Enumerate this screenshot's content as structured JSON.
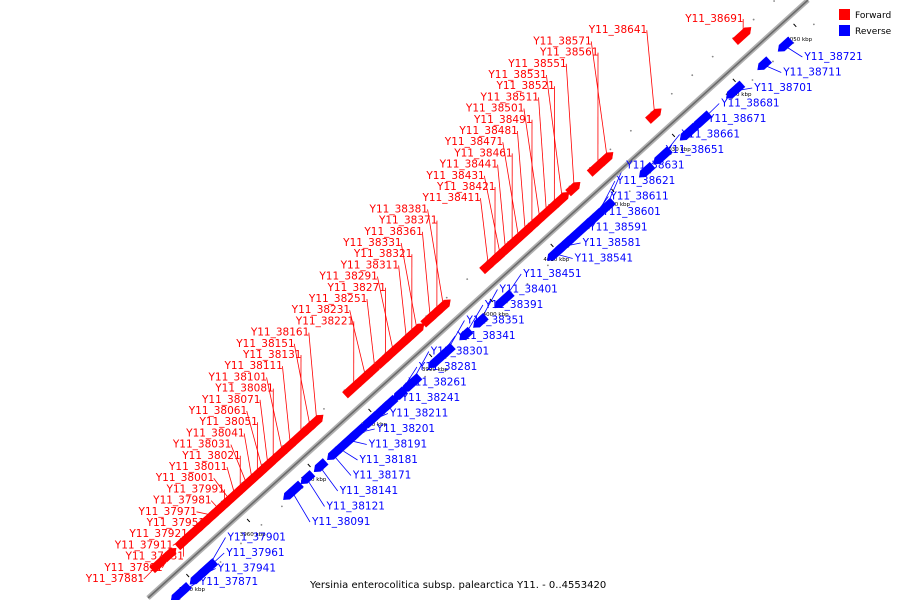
{
  "caption": "Yersinia enterocolitica subsp. palearctica Y11. - 0..4553420",
  "legend": [
    {
      "label": "Forward",
      "color": "#ff0000"
    },
    {
      "label": "Reverse",
      "color": "#0000ff"
    }
  ],
  "colors": {
    "forward": "#ff0000",
    "reverse": "#0000ff",
    "backbone": "#9a9a9a"
  },
  "ticks": [
    "3950 kbp",
    "3960 kbp",
    "3970 kbp",
    "3980 kbp",
    "3990 kbp",
    "4000 kbp",
    "4010 kbp",
    "4020 kbp",
    "4030 kbp",
    "4040 kbp",
    "4050 kbp"
  ],
  "genes": [
    {
      "id": "Y11_37871",
      "strand": "reverse",
      "pos": 0.03
    },
    {
      "id": "Y11_37881",
      "strand": "forward",
      "pos": 0.036
    },
    {
      "id": "Y11_37891",
      "strand": "forward",
      "pos": 0.052
    },
    {
      "id": "Y11_37901",
      "strand": "reverse",
      "pos": 0.072
    },
    {
      "id": "Y11_37911",
      "strand": "forward",
      "pos": 0.08
    },
    {
      "id": "Y11_37921",
      "strand": "forward",
      "pos": 0.09
    },
    {
      "id": "Y11_37931",
      "strand": "forward",
      "pos": 0.072
    },
    {
      "id": "Y11_37941",
      "strand": "reverse",
      "pos": 0.057
    },
    {
      "id": "Y11_37951",
      "strand": "forward",
      "pos": 0.104
    },
    {
      "id": "Y11_37961",
      "strand": "reverse",
      "pos": 0.07
    },
    {
      "id": "Y11_37971",
      "strand": "forward",
      "pos": 0.116
    },
    {
      "id": "Y11_37981",
      "strand": "forward",
      "pos": 0.126
    },
    {
      "id": "Y11_37991",
      "strand": "forward",
      "pos": 0.134
    },
    {
      "id": "Y11_38001",
      "strand": "forward",
      "pos": 0.142
    },
    {
      "id": "Y11_38011",
      "strand": "forward",
      "pos": 0.15
    },
    {
      "id": "Y11_38021",
      "strand": "forward",
      "pos": 0.158
    },
    {
      "id": "Y11_38031",
      "strand": "forward",
      "pos": 0.168
    },
    {
      "id": "Y11_38041",
      "strand": "forward",
      "pos": 0.176
    },
    {
      "id": "Y11_38051",
      "strand": "forward",
      "pos": 0.184
    },
    {
      "id": "Y11_38061",
      "strand": "forward",
      "pos": 0.192
    },
    {
      "id": "Y11_38071",
      "strand": "forward",
      "pos": 0.2
    },
    {
      "id": "Y11_38081",
      "strand": "forward",
      "pos": 0.208
    },
    {
      "id": "Y11_38091",
      "strand": "reverse",
      "pos": 0.2
    },
    {
      "id": "Y11_38101",
      "strand": "forward",
      "pos": 0.222
    },
    {
      "id": "Y11_38111",
      "strand": "forward",
      "pos": 0.234
    },
    {
      "id": "Y11_38121",
      "strand": "reverse",
      "pos": 0.222
    },
    {
      "id": "Y11_38131",
      "strand": "forward",
      "pos": 0.25
    },
    {
      "id": "Y11_38141",
      "strand": "reverse",
      "pos": 0.242
    },
    {
      "id": "Y11_38151",
      "strand": "forward",
      "pos": 0.264
    },
    {
      "id": "Y11_38161",
      "strand": "forward",
      "pos": 0.274
    },
    {
      "id": "Y11_38171",
      "strand": "reverse",
      "pos": 0.262
    },
    {
      "id": "Y11_38181",
      "strand": "reverse",
      "pos": 0.272
    },
    {
      "id": "Y11_38191",
      "strand": "reverse",
      "pos": 0.286
    },
    {
      "id": "Y11_38201",
      "strand": "reverse",
      "pos": 0.298
    },
    {
      "id": "Y11_38211",
      "strand": "reverse",
      "pos": 0.318
    },
    {
      "id": "Y11_38221",
      "strand": "forward",
      "pos": 0.33
    },
    {
      "id": "Y11_38231",
      "strand": "forward",
      "pos": 0.348
    },
    {
      "id": "Y11_38241",
      "strand": "reverse",
      "pos": 0.336
    },
    {
      "id": "Y11_38251",
      "strand": "forward",
      "pos": 0.362
    },
    {
      "id": "Y11_38261",
      "strand": "reverse",
      "pos": 0.346
    },
    {
      "id": "Y11_38271",
      "strand": "forward",
      "pos": 0.378
    },
    {
      "id": "Y11_38281",
      "strand": "reverse",
      "pos": 0.362
    },
    {
      "id": "Y11_38291",
      "strand": "forward",
      "pos": 0.39
    },
    {
      "id": "Y11_38301",
      "strand": "reverse",
      "pos": 0.38
    },
    {
      "id": "Y11_38311",
      "strand": "forward",
      "pos": 0.41
    },
    {
      "id": "Y11_38321",
      "strand": "forward",
      "pos": 0.418
    },
    {
      "id": "Y11_38331",
      "strand": "forward",
      "pos": 0.426
    },
    {
      "id": "Y11_38341",
      "strand": "reverse",
      "pos": 0.42
    },
    {
      "id": "Y11_38351",
      "strand": "reverse",
      "pos": 0.434
    },
    {
      "id": "Y11_38361",
      "strand": "forward",
      "pos": 0.446
    },
    {
      "id": "Y11_38371",
      "strand": "forward",
      "pos": 0.456
    },
    {
      "id": "Y11_38381",
      "strand": "forward",
      "pos": 0.466
    },
    {
      "id": "Y11_38391",
      "strand": "reverse",
      "pos": 0.462
    },
    {
      "id": "Y11_38401",
      "strand": "reverse",
      "pos": 0.484
    },
    {
      "id": "Y11_38411",
      "strand": "forward",
      "pos": 0.534
    },
    {
      "id": "Y11_38421",
      "strand": "forward",
      "pos": 0.544
    },
    {
      "id": "Y11_38431",
      "strand": "forward",
      "pos": 0.552
    },
    {
      "id": "Y11_38441",
      "strand": "forward",
      "pos": 0.56
    },
    {
      "id": "Y11_38451",
      "strand": "reverse",
      "pos": 0.52
    },
    {
      "id": "Y11_38461",
      "strand": "forward",
      "pos": 0.57
    },
    {
      "id": "Y11_38471",
      "strand": "forward",
      "pos": 0.58
    },
    {
      "id": "Y11_38481",
      "strand": "forward",
      "pos": 0.59
    },
    {
      "id": "Y11_38491",
      "strand": "forward",
      "pos": 0.6
    },
    {
      "id": "Y11_38501",
      "strand": "forward",
      "pos": 0.612
    },
    {
      "id": "Y11_38511",
      "strand": "forward",
      "pos": 0.622
    },
    {
      "id": "Y11_38521",
      "strand": "forward",
      "pos": 0.634
    },
    {
      "id": "Y11_38531",
      "strand": "forward",
      "pos": 0.646
    },
    {
      "id": "Y11_38541",
      "strand": "reverse",
      "pos": 0.598
    },
    {
      "id": "Y11_38551",
      "strand": "forward",
      "pos": 0.664
    },
    {
      "id": "Y11_38561",
      "strand": "forward",
      "pos": 0.7
    },
    {
      "id": "Y11_38571",
      "strand": "forward",
      "pos": 0.714
    },
    {
      "id": "Y11_38581",
      "strand": "reverse",
      "pos": 0.61
    },
    {
      "id": "Y11_38591",
      "strand": "reverse",
      "pos": 0.62
    },
    {
      "id": "Y11_38601",
      "strand": "reverse",
      "pos": 0.64
    },
    {
      "id": "Y11_38611",
      "strand": "reverse",
      "pos": 0.652
    },
    {
      "id": "Y11_38621",
      "strand": "reverse",
      "pos": 0.662
    },
    {
      "id": "Y11_38631",
      "strand": "reverse",
      "pos": 0.676
    },
    {
      "id": "Y11_38641",
      "strand": "forward",
      "pos": 0.786
    },
    {
      "id": "Y11_38651",
      "strand": "reverse",
      "pos": 0.736
    },
    {
      "id": "Y11_38661",
      "strand": "reverse",
      "pos": 0.76
    },
    {
      "id": "Y11_38671",
      "strand": "reverse",
      "pos": 0.8
    },
    {
      "id": "Y11_38681",
      "strand": "reverse",
      "pos": 0.82
    },
    {
      "id": "Y11_38691",
      "strand": "forward",
      "pos": 0.92
    },
    {
      "id": "Y11_38701",
      "strand": "reverse",
      "pos": 0.87
    },
    {
      "id": "Y11_38711",
      "strand": "reverse",
      "pos": 0.914
    },
    {
      "id": "Y11_38721",
      "strand": "reverse",
      "pos": 0.946
    }
  ]
}
